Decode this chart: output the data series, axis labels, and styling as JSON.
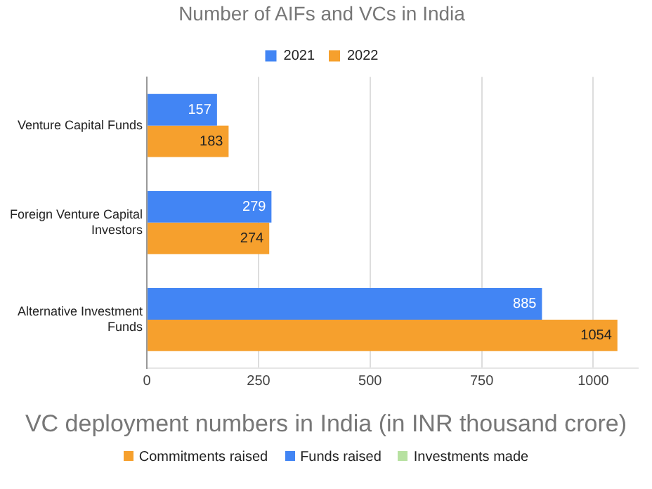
{
  "chart_data": [
    {
      "type": "bar",
      "title": "Number of AIFs and VCs in India",
      "orientation": "horizontal",
      "categories": [
        "Venture Capital Funds",
        "Foreign Venture Capital Investors",
        "Alternative Investment Funds"
      ],
      "series": [
        {
          "name": "2021",
          "color": "#4285f4",
          "values": [
            157,
            279,
            885
          ]
        },
        {
          "name": "2022",
          "color": "#f6a02d",
          "values": [
            183,
            274,
            1054
          ]
        }
      ],
      "xlim": [
        0,
        1100
      ],
      "xticks": [
        0,
        250,
        500,
        750,
        1000
      ],
      "grid": "x",
      "legend": "top",
      "data_labels": true
    },
    {
      "type": "other",
      "title": "VC deployment numbers in India (in INR thousand crore)",
      "series": [
        {
          "name": "Commitments raised",
          "color": "#f6a02d"
        },
        {
          "name": "Funds raised",
          "color": "#4285f4"
        },
        {
          "name": "Investments made",
          "color": "#b7e1a1"
        }
      ],
      "legend": "top"
    }
  ]
}
